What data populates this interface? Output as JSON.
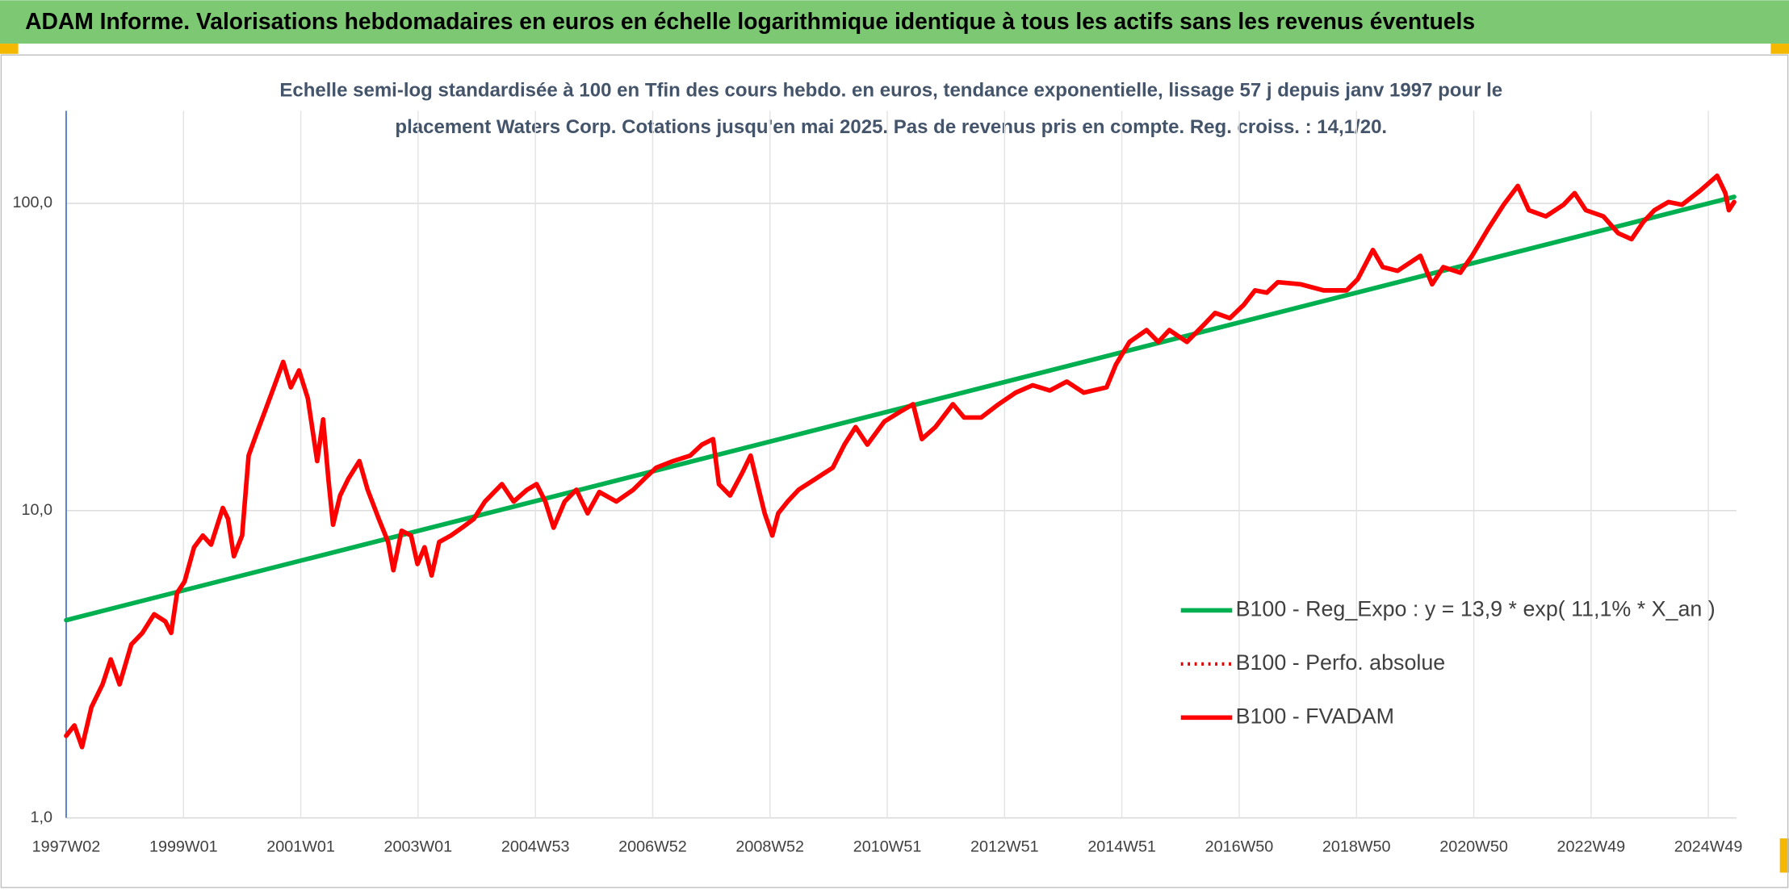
{
  "chart_data": {
    "type": "line",
    "title": "ADAM Informe. Valorisations hebdomadaires en euros en échelle logarithmique identique à tous les actifs sans les revenus éventuels",
    "subtitle": [
      "Echelle semi-log standardisée à 100 en Tfin des cours hebdo. en euros, tendance exponentielle, lissage 57 j depuis janv 1997 pour le",
      "placement Waters Corp. Cotations jusqu'en mai 2025. Pas de revenus pris en compte. Reg. croiss. : 14,1/20."
    ],
    "yscale": "log",
    "grid": true,
    "legend": "bottom-right",
    "xlim": [
      1997,
      2025.48
    ],
    "ylim": [
      1,
      200
    ],
    "xticks": [
      {
        "value": 1997.0,
        "label": "1997W02"
      },
      {
        "value": 1999.0,
        "label": "1999W01"
      },
      {
        "value": 2001.0,
        "label": "2001W01"
      },
      {
        "value": 2003.0,
        "label": "2003W01"
      },
      {
        "value": 2005.0,
        "label": "2004W53"
      },
      {
        "value": 2007.0,
        "label": "2006W52"
      },
      {
        "value": 2009.0,
        "label": "2008W52"
      },
      {
        "value": 2011.0,
        "label": "2010W51"
      },
      {
        "value": 2013.0,
        "label": "2012W51"
      },
      {
        "value": 2015.0,
        "label": "2014W51"
      },
      {
        "value": 2017.0,
        "label": "2016W50"
      },
      {
        "value": 2019.0,
        "label": "2018W50"
      },
      {
        "value": 2021.0,
        "label": "2020W50"
      },
      {
        "value": 2023.0,
        "label": "2022W49"
      },
      {
        "value": 2025.0,
        "label": "2024W49"
      }
    ],
    "yticks": [
      {
        "value": 1,
        "label": "1,0"
      },
      {
        "value": 10,
        "label": "10,0"
      },
      {
        "value": 100,
        "label": "100,0"
      }
    ],
    "series": [
      {
        "name": "B100 - Reg_Expo : y = 13,9 * exp( 11,1% *  X_an )",
        "color": "#00b050",
        "style": "solid",
        "x": [
          1997.0,
          2025.44
        ],
        "values": [
          4.4,
          105
        ]
      },
      {
        "name": "B100 - Perfo. absolue",
        "color": "#e00000",
        "style": "dotted",
        "x": [],
        "values": []
      },
      {
        "name": "B100 - FVADAM",
        "color": "#ff0000",
        "style": "solid",
        "x": [
          1997.0,
          1997.14,
          1997.27,
          1997.43,
          1997.62,
          1997.76,
          1997.91,
          1998.11,
          1998.3,
          1998.5,
          1998.69,
          1998.79,
          1998.89,
          1999.02,
          1999.18,
          1999.33,
          1999.47,
          1999.67,
          1999.76,
          1999.86,
          2000.0,
          2000.11,
          2000.25,
          2000.39,
          2000.54,
          2000.7,
          2000.83,
          2000.97,
          2001.12,
          2001.28,
          2001.38,
          2001.47,
          2001.55,
          2001.67,
          2001.81,
          2002.0,
          2002.14,
          2002.33,
          2002.49,
          2002.58,
          2002.72,
          2002.88,
          2002.99,
          2003.11,
          2003.23,
          2003.36,
          2003.56,
          2003.75,
          2003.95,
          2004.14,
          2004.43,
          2004.63,
          2004.86,
          2005.02,
          2005.17,
          2005.31,
          2005.5,
          2005.7,
          2005.89,
          2006.09,
          2006.38,
          2006.67,
          2006.86,
          2007.06,
          2007.35,
          2007.64,
          2007.84,
          2008.03,
          2008.13,
          2008.32,
          2008.52,
          2008.67,
          2008.81,
          2008.91,
          2009.04,
          2009.14,
          2009.3,
          2009.49,
          2009.78,
          2010.07,
          2010.27,
          2010.46,
          2010.66,
          2010.95,
          2011.24,
          2011.44,
          2011.59,
          2011.82,
          2012.12,
          2012.31,
          2012.6,
          2012.9,
          2013.19,
          2013.48,
          2013.77,
          2014.06,
          2014.35,
          2014.74,
          2014.9,
          2015.13,
          2015.42,
          2015.62,
          2015.81,
          2016.11,
          2016.4,
          2016.59,
          2016.84,
          2017.08,
          2017.27,
          2017.47,
          2017.66,
          2018.05,
          2018.44,
          2018.83,
          2019.02,
          2019.28,
          2019.45,
          2019.7,
          2020.09,
          2020.29,
          2020.48,
          2020.77,
          2020.97,
          2021.26,
          2021.51,
          2021.75,
          2021.94,
          2022.23,
          2022.53,
          2022.72,
          2022.91,
          2023.21,
          2023.46,
          2023.69,
          2023.89,
          2024.08,
          2024.32,
          2024.55,
          2024.86,
          2025.15,
          2025.29,
          2025.35,
          2025.44
        ],
        "values": [
          1.85,
          2.0,
          1.7,
          2.29,
          2.72,
          3.28,
          2.72,
          3.67,
          4.0,
          4.6,
          4.36,
          4.0,
          5.4,
          5.88,
          7.6,
          8.3,
          7.75,
          10.2,
          9.4,
          7.1,
          8.3,
          15.1,
          17.9,
          21.1,
          25.2,
          30.5,
          25.2,
          28.6,
          23.2,
          14.5,
          19.8,
          12.7,
          9.0,
          11.2,
          12.7,
          14.5,
          11.7,
          9.4,
          7.9,
          6.4,
          8.6,
          8.3,
          6.7,
          7.6,
          6.15,
          7.9,
          8.3,
          8.8,
          9.4,
          10.7,
          12.2,
          10.7,
          11.7,
          12.2,
          10.7,
          8.8,
          10.7,
          11.7,
          9.8,
          11.5,
          10.7,
          11.7,
          12.7,
          13.8,
          14.5,
          15.1,
          16.4,
          17.1,
          12.2,
          11.2,
          13.2,
          15.1,
          11.7,
          9.8,
          8.3,
          9.8,
          10.7,
          11.7,
          12.7,
          13.8,
          16.4,
          18.7,
          16.4,
          19.5,
          21.1,
          22.2,
          17.1,
          18.7,
          22.2,
          20.1,
          20.1,
          22.2,
          24.2,
          25.6,
          24.6,
          26.3,
          24.2,
          25.2,
          29.9,
          35.4,
          38.7,
          35.4,
          38.7,
          35.4,
          40.3,
          44.0,
          42.3,
          46.8,
          52.1,
          51.2,
          55.4,
          54.5,
          52.1,
          52.1,
          56.6,
          70.5,
          62.0,
          60.3,
          67.5,
          54.5,
          62.0,
          59.5,
          67.5,
          83.5,
          99.0,
          114,
          95,
          90.7,
          99,
          108,
          95,
          90.7,
          80,
          76.5,
          87,
          95,
          101,
          99,
          110,
          123,
          108,
          95,
          101
        ]
      }
    ]
  }
}
